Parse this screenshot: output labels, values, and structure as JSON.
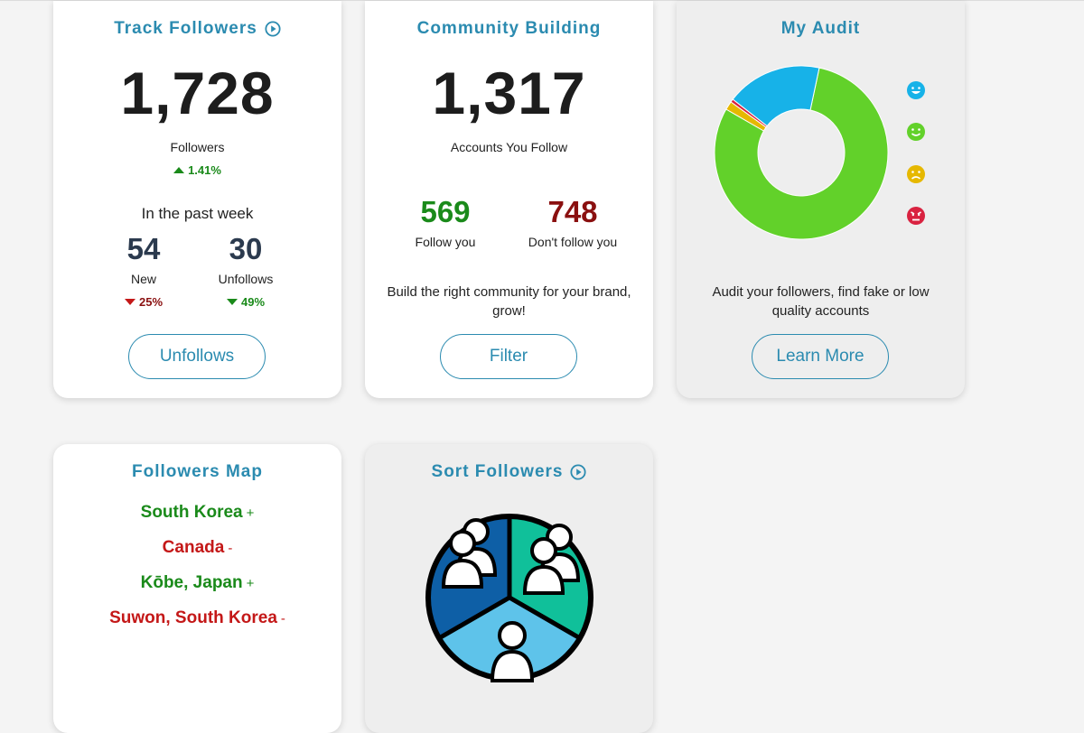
{
  "track_followers": {
    "title": "Track Followers",
    "title_icon": "play-circle-icon",
    "total": "1,728",
    "total_label": "Followers",
    "total_change": "1.41%",
    "week_heading": "In the past week",
    "new_count": "54",
    "new_label": "New",
    "new_change": "25%",
    "unfollows_count": "30",
    "unfollows_label": "Unfollows",
    "unfollows_change": "49%",
    "button_label": "Unfollows"
  },
  "community_building": {
    "title": "Community Building",
    "total": "1,317",
    "total_label": "Accounts You Follow",
    "follow_you_count": "569",
    "follow_you_label": "Follow you",
    "dont_follow_count": "748",
    "dont_follow_label": "Don't follow you",
    "description": "Build the right community for your brand, grow!",
    "button_label": "Filter"
  },
  "my_audit": {
    "title": "My Audit",
    "description": "Audit your followers, find fake or low quality accounts",
    "button_label": "Learn More",
    "legend_icons": [
      "very-happy-face-icon",
      "happy-face-icon",
      "sad-face-icon",
      "angry-face-icon"
    ],
    "colors": {
      "very_happy": "#17b2e8",
      "happy": "#62d12a",
      "sad": "#e6b800",
      "angry": "#d92240"
    }
  },
  "chart_data": {
    "type": "pie",
    "variant": "donut",
    "slices": [
      {
        "value": 80,
        "color": "#62d12a"
      },
      {
        "value": 1.6,
        "color": "#e6b800"
      },
      {
        "value": 0.6,
        "color": "#d92240"
      },
      {
        "value": 17.8,
        "color": "#17b2e8"
      }
    ],
    "start_angle_deg": 78
  },
  "followers_map": {
    "title": "Followers Map",
    "locations": [
      {
        "name": "South Korea",
        "sign": "+"
      },
      {
        "name": "Canada",
        "sign": "-"
      },
      {
        "name": "Kōbe, Japan",
        "sign": "+"
      },
      {
        "name": "Suwon, South Korea",
        "sign": "-"
      }
    ]
  },
  "sort_followers": {
    "title": "Sort Followers",
    "title_icon": "play-circle-icon",
    "illustration_icon": "user-groups-segmented-circle-icon",
    "colors": {
      "segment_left": "#0e5fa6",
      "segment_right": "#10c09a",
      "segment_bottom": "#5ec3ea"
    }
  }
}
